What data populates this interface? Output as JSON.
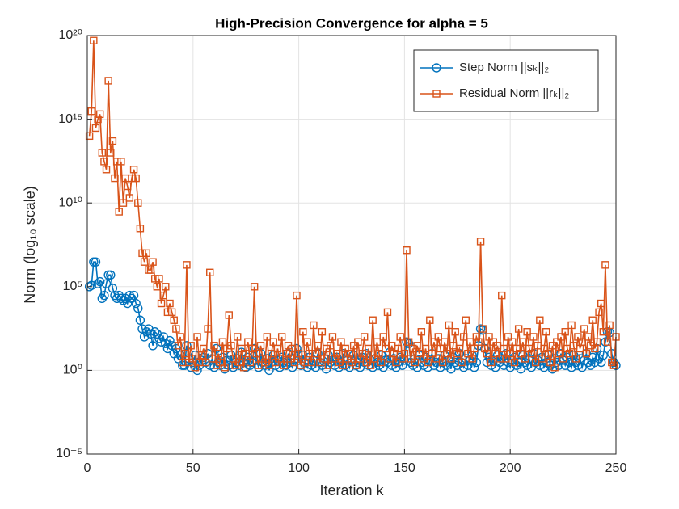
{
  "chart_data": {
    "type": "line",
    "title": "High-Precision Convergence for alpha = 5",
    "xlabel": "Iteration k",
    "ylabel": "Norm (log₁₀ scale)",
    "log_y": true,
    "grid": true,
    "legend": "northeast",
    "xlim": [
      0,
      250
    ],
    "xticks": [
      0,
      50,
      100,
      150,
      200,
      250
    ],
    "ylim": [
      1e-05,
      1e+20
    ],
    "yticks": [
      {
        "value": 1e-05,
        "label": "10⁻⁵"
      },
      {
        "value": 1,
        "label": "10⁰"
      },
      {
        "value": 100000.0,
        "label": "10⁵"
      },
      {
        "value": 10000000000.0,
        "label": "10¹⁰"
      },
      {
        "value": 1000000000000000.0,
        "label": "10¹⁵"
      },
      {
        "value": 1e+20,
        "label": "10²⁰"
      }
    ],
    "x": [
      1,
      2,
      3,
      4,
      5,
      6,
      7,
      8,
      9,
      10,
      11,
      12,
      13,
      14,
      15,
      16,
      17,
      18,
      19,
      20,
      21,
      22,
      23,
      24,
      25,
      26,
      27,
      28,
      29,
      30,
      31,
      32,
      33,
      34,
      35,
      36,
      37,
      38,
      39,
      40,
      41,
      42,
      43,
      44,
      45,
      46,
      47,
      48,
      49,
      50,
      51,
      52,
      53,
      54,
      55,
      56,
      57,
      58,
      59,
      60,
      61,
      62,
      63,
      64,
      65,
      66,
      67,
      68,
      69,
      70,
      71,
      72,
      73,
      74,
      75,
      76,
      77,
      78,
      79,
      80,
      81,
      82,
      83,
      84,
      85,
      86,
      87,
      88,
      89,
      90,
      91,
      92,
      93,
      94,
      95,
      96,
      97,
      98,
      99,
      100,
      101,
      102,
      103,
      104,
      105,
      106,
      107,
      108,
      109,
      110,
      111,
      112,
      113,
      114,
      115,
      116,
      117,
      118,
      119,
      120,
      121,
      122,
      123,
      124,
      125,
      126,
      127,
      128,
      129,
      130,
      131,
      132,
      133,
      134,
      135,
      136,
      137,
      138,
      139,
      140,
      141,
      142,
      143,
      144,
      145,
      146,
      147,
      148,
      149,
      150,
      151,
      152,
      153,
      154,
      155,
      156,
      157,
      158,
      159,
      160,
      161,
      162,
      163,
      164,
      165,
      166,
      167,
      168,
      169,
      170,
      171,
      172,
      173,
      174,
      175,
      176,
      177,
      178,
      179,
      180,
      181,
      182,
      183,
      184,
      185,
      186,
      187,
      188,
      189,
      190,
      191,
      192,
      193,
      194,
      195,
      196,
      197,
      198,
      199,
      200,
      201,
      202,
      203,
      204,
      205,
      206,
      207,
      208,
      209,
      210,
      211,
      212,
      213,
      214,
      215,
      216,
      217,
      218,
      219,
      220,
      221,
      222,
      223,
      224,
      225,
      226,
      227,
      228,
      229,
      230,
      231,
      232,
      233,
      234,
      235,
      236,
      237,
      238,
      239,
      240,
      241,
      242,
      243,
      244,
      245,
      246,
      247,
      248,
      249,
      250
    ],
    "series": [
      {
        "name": "Step Norm ||sₖ||₂",
        "color": "#0072BD",
        "marker": "circle",
        "values": [
          100000.0,
          120000.0,
          3000000.0,
          3000000.0,
          150000.0,
          200000.0,
          20000.0,
          30000.0,
          150000.0,
          500000.0,
          500000.0,
          80000.0,
          30000.0,
          20000.0,
          30000.0,
          20000.0,
          15000.0,
          20000.0,
          10000.0,
          30000.0,
          20000.0,
          30000.0,
          10000.0,
          5000.0,
          1000.0,
          300,
          100,
          200,
          300,
          150,
          30,
          200,
          150,
          80,
          50,
          100,
          40,
          20,
          60,
          30,
          10,
          20,
          5,
          8,
          2,
          2,
          30,
          5,
          1.5,
          3,
          8,
          1,
          2,
          4,
          6,
          3,
          10,
          2,
          5,
          1.5,
          20,
          3,
          2,
          6,
          1.2,
          4,
          2,
          8,
          1.5,
          3,
          5,
          2,
          12,
          3,
          1.5,
          6,
          2,
          3,
          20,
          4,
          1.5,
          10,
          3,
          2,
          5,
          1,
          3,
          8,
          2,
          4,
          1.5,
          6,
          3,
          2,
          10,
          3,
          1.5,
          5,
          20,
          4,
          2,
          8,
          3,
          1.5,
          6,
          2,
          4,
          1.5,
          10,
          3,
          2,
          5,
          1.2,
          8,
          3,
          4,
          2,
          6,
          1.5,
          3,
          10,
          2,
          5,
          1.5,
          4,
          8,
          2,
          3,
          1.5,
          6,
          3,
          10,
          2,
          4,
          1.5,
          5,
          3,
          2,
          8,
          1.5,
          4,
          3,
          12,
          2,
          5,
          1.5,
          3,
          6,
          2,
          4,
          50,
          40,
          3,
          2,
          5,
          1.5,
          8,
          3,
          2,
          6,
          1.5,
          4,
          10,
          2,
          3,
          5,
          1.5,
          3,
          8,
          2,
          4,
          1.2,
          6,
          3,
          2,
          10,
          3,
          1.5,
          5,
          2,
          4,
          8,
          1.5,
          3,
          30,
          300,
          250,
          20,
          3,
          6,
          2,
          4,
          1.5,
          8,
          3,
          5,
          2,
          10,
          3,
          1.5,
          4,
          6,
          2,
          3,
          1.2,
          8,
          3,
          2,
          5,
          1.5,
          10,
          3,
          4,
          2,
          6,
          1.5,
          3,
          8,
          2,
          1.2,
          5,
          3,
          2,
          10,
          4,
          2,
          6,
          3,
          1.5,
          8,
          3,
          2,
          5,
          1.5,
          4,
          10,
          3,
          2,
          6,
          3,
          20,
          5,
          3,
          8,
          50,
          200,
          180,
          10,
          3,
          2
        ]
      },
      {
        "name": "Residual Norm ||rₖ||₂",
        "color": "#D95319",
        "marker": "square",
        "values": [
          100000000000000.0,
          3000000000000000.0,
          5e+19,
          300000000000000.0,
          1000000000000000.0,
          2000000000000000.0,
          10000000000000.0,
          3000000000000.0,
          1000000000000.0,
          2e+17,
          10000000000000.0,
          50000000000000.0,
          300000000000.0,
          3000000000000.0,
          3000000000.0,
          3000000000000.0,
          10000000000.0,
          300000000000.0,
          100000000000.0,
          20000000000.0,
          300000000000.0,
          1000000000000.0,
          300000000000.0,
          10000000000.0,
          300000000.0,
          10000000.0,
          3000000.0,
          10000000.0,
          1000000.0,
          1000000.0,
          3000000.0,
          300000.0,
          100000.0,
          300000.0,
          10000.0,
          30000.0,
          100000.0,
          3000.0,
          10000.0,
          3000.0,
          1000.0,
          300,
          30,
          100,
          3,
          10,
          2000000.0,
          3,
          30,
          5,
          1.5,
          100,
          3,
          8,
          20,
          3,
          300,
          700000.0,
          5,
          30,
          2,
          10,
          3,
          50,
          1.5,
          20,
          2000,
          30,
          5,
          2,
          100,
          3,
          20,
          1.5,
          10,
          50,
          3,
          20,
          100000.0,
          10,
          2,
          30,
          5,
          3,
          100,
          2,
          10,
          50,
          3,
          20,
          5,
          100,
          2,
          10,
          30,
          5,
          20,
          3,
          30000.0,
          10,
          2,
          200,
          3,
          50,
          10,
          3,
          500,
          10,
          30,
          3,
          200,
          5,
          20,
          2,
          30,
          100,
          5,
          10,
          3,
          50,
          2,
          20,
          5,
          10,
          3,
          30,
          2,
          50,
          5,
          10,
          100,
          3,
          20,
          2,
          1000,
          5,
          50,
          10,
          3,
          100,
          20,
          3000,
          5,
          30,
          10,
          3,
          20,
          100,
          5,
          10,
          15000000.0,
          50,
          5,
          20,
          3,
          30,
          10,
          200,
          5,
          20,
          3,
          1000,
          10,
          50,
          5,
          100,
          20,
          3,
          50,
          10,
          500,
          5,
          30,
          200,
          10,
          20,
          3,
          100,
          1000,
          10,
          50,
          5,
          20,
          100,
          50,
          50000000.0,
          300,
          20,
          10,
          100,
          3,
          50,
          10,
          30,
          5,
          30000.0,
          20,
          5,
          100,
          10,
          50,
          3,
          20,
          300,
          10,
          50,
          5,
          200,
          20,
          10,
          100,
          3,
          30,
          1000,
          5,
          20,
          200,
          10,
          3,
          30,
          1.5,
          50,
          10,
          100,
          5,
          200,
          20,
          10,
          500,
          30,
          5,
          100,
          20,
          50,
          300,
          10,
          100,
          30,
          1000,
          20,
          50,
          3000,
          10000.0,
          200,
          2000000.0,
          50,
          500,
          3,
          2,
          100
        ]
      }
    ]
  }
}
